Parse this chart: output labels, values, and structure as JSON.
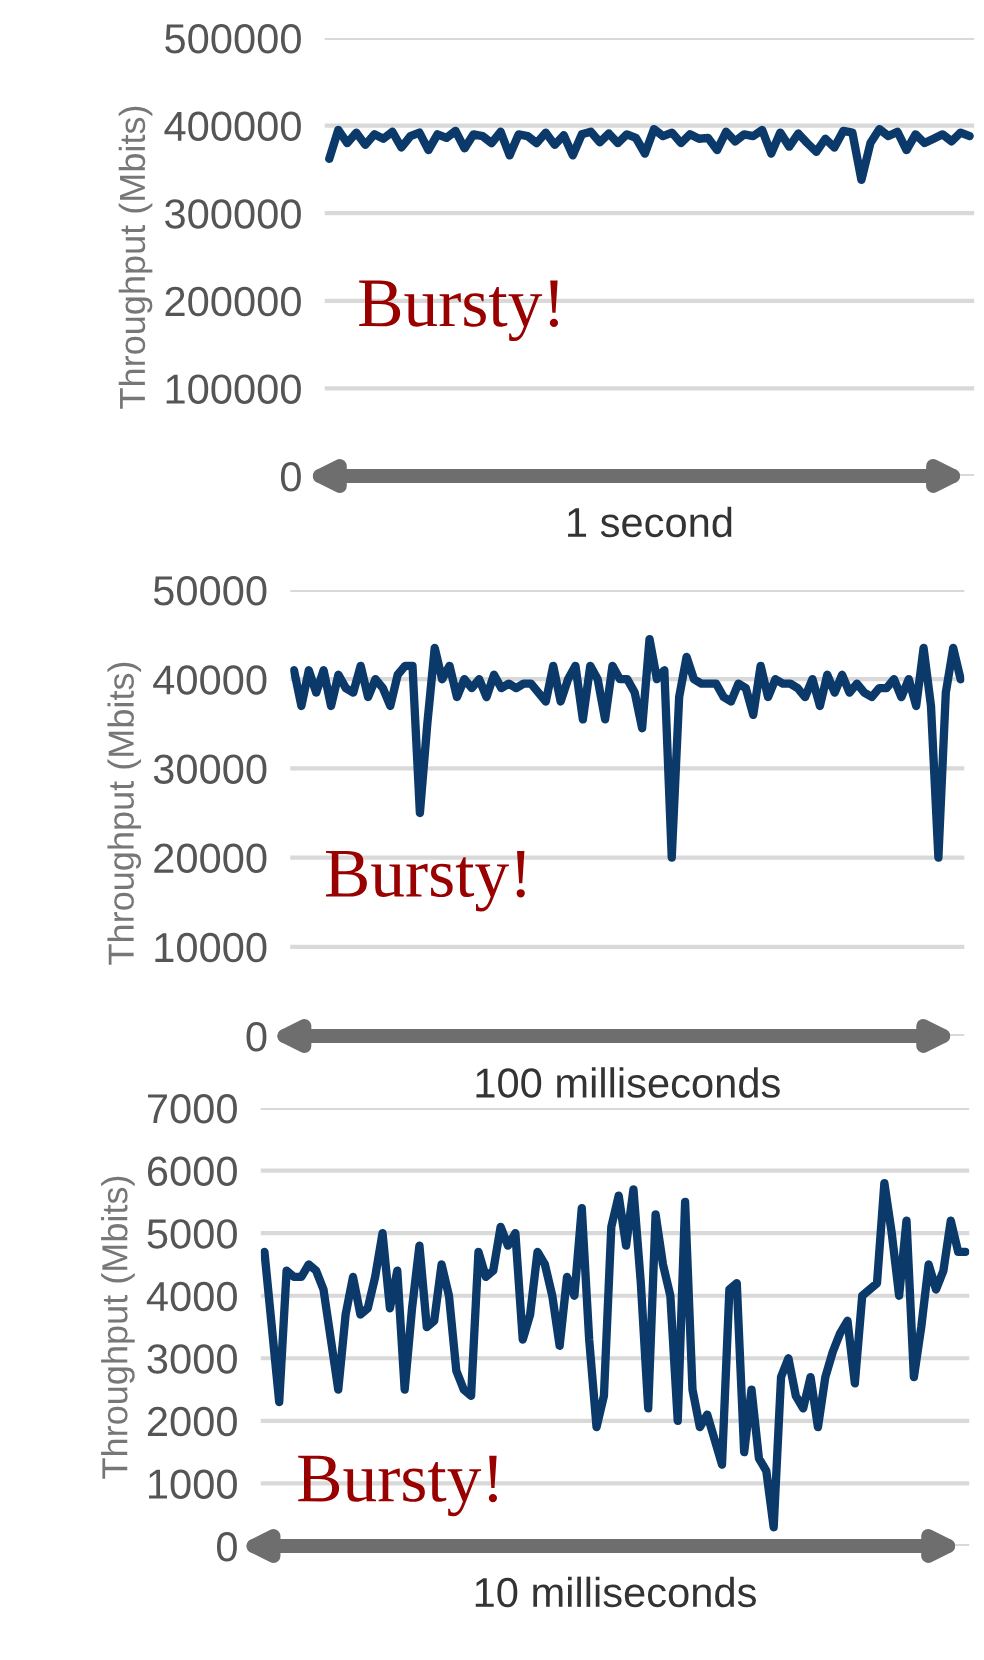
{
  "chart_data": [
    {
      "type": "line",
      "ylabel": "Throughput (Mbits)",
      "xlabel": "1 second",
      "annotations": [
        "Bursty!"
      ],
      "ylim": [
        0,
        500000
      ],
      "yticks": [
        0,
        100000,
        200000,
        300000,
        400000,
        500000
      ],
      "grid": "y",
      "tick_labels": "y",
      "line_style": "solid",
      "categories": [
        null,
        null,
        null,
        null,
        null,
        null,
        null,
        null,
        null,
        null,
        null,
        null,
        null,
        null,
        null,
        null,
        null,
        null,
        null,
        null,
        null,
        null,
        null,
        null,
        null,
        null,
        null,
        null,
        null,
        null,
        null,
        null,
        null,
        null,
        null,
        null,
        null,
        null,
        null,
        null,
        null,
        null,
        null,
        null,
        null,
        null,
        null,
        null,
        null,
        null,
        null,
        null,
        null,
        null,
        null,
        null,
        null,
        null,
        null,
        null,
        null,
        null,
        null,
        null,
        null,
        null,
        null,
        null,
        null,
        null,
        null,
        null
      ],
      "series": [
        {
          "color": "#0b3a6a",
          "values": [
            362000,
            395000,
            380000,
            392000,
            378000,
            390000,
            385000,
            393000,
            375000,
            388000,
            392000,
            372000,
            390000,
            386000,
            394000,
            374000,
            390000,
            388000,
            380000,
            393000,
            366000,
            390000,
            388000,
            380000,
            392000,
            378000,
            389000,
            366000,
            390000,
            393000,
            381000,
            391000,
            380000,
            390000,
            386000,
            368000,
            396000,
            388000,
            392000,
            380000,
            390000,
            385000,
            386000,
            372000,
            393000,
            382000,
            390000,
            388000,
            395000,
            368000,
            392000,
            376000,
            391000,
            380000,
            370000,
            385000,
            375000,
            394000,
            392000,
            338000,
            380000,
            396000,
            388000,
            393000,
            372000,
            390000,
            380000,
            385000,
            390000,
            382000,
            392000,
            388000
          ]
        }
      ]
    },
    {
      "type": "line",
      "ylabel": "Throughput (Mbits)",
      "xlabel": "100 milliseconds",
      "annotations": [
        "Bursty!"
      ],
      "ylim": [
        0,
        50000
      ],
      "yticks": [
        0,
        10000,
        20000,
        30000,
        40000,
        50000
      ],
      "grid": "y",
      "tick_labels": "y",
      "line_style": "solid",
      "categories": [
        null,
        null,
        null,
        null,
        null,
        null,
        null,
        null,
        null,
        null,
        null,
        null,
        null,
        null,
        null,
        null,
        null,
        null,
        null,
        null,
        null,
        null,
        null,
        null,
        null,
        null,
        null,
        null,
        null,
        null,
        null,
        null,
        null,
        null,
        null,
        null,
        null,
        null,
        null,
        null,
        null,
        null,
        null,
        null,
        null,
        null,
        null,
        null,
        null,
        null,
        null,
        null,
        null,
        null,
        null,
        null,
        null,
        null,
        null,
        null,
        null,
        null,
        null,
        null,
        null,
        null,
        null,
        null,
        null,
        null,
        null,
        null,
        null,
        null,
        null,
        null,
        null,
        null,
        null,
        null,
        null,
        null,
        null,
        null,
        null,
        null,
        null,
        null,
        null,
        null,
        null
      ],
      "series": [
        {
          "color": "#0b3a6a",
          "values": [
            41000,
            37000,
            41000,
            38500,
            41000,
            37000,
            40500,
            39000,
            38500,
            41500,
            38000,
            40000,
            39000,
            37000,
            40500,
            41500,
            41500,
            25000,
            35000,
            43500,
            40000,
            41500,
            38000,
            40000,
            39000,
            40000,
            38000,
            40500,
            39000,
            39500,
            39000,
            39500,
            39500,
            38500,
            37500,
            41500,
            37500,
            40000,
            41500,
            35500,
            41500,
            40000,
            35500,
            41500,
            40000,
            40000,
            38500,
            34500,
            44500,
            40000,
            41000,
            20000,
            38000,
            42500,
            40000,
            39500,
            39500,
            39500,
            38000,
            37500,
            39500,
            39000,
            36000,
            41500,
            38000,
            40000,
            39500,
            39500,
            39000,
            38000,
            40000,
            37000,
            40500,
            38500,
            40500,
            38500,
            39500,
            38500,
            38000,
            39000,
            39000,
            40000,
            38000,
            40000,
            37000,
            43500,
            37000,
            20000,
            38500,
            43500,
            40000
          ]
        }
      ]
    },
    {
      "type": "line",
      "ylabel": "Throughput (Mbits)",
      "xlabel": "10 milliseconds",
      "annotations": [
        "Bursty!"
      ],
      "ylim": [
        0,
        7000
      ],
      "yticks": [
        0,
        1000,
        2000,
        3000,
        4000,
        5000,
        6000,
        7000
      ],
      "grid": "y",
      "tick_labels": "y",
      "line_style": "solid",
      "categories": [
        null,
        null,
        null,
        null,
        null,
        null,
        null,
        null,
        null,
        null,
        null,
        null,
        null,
        null,
        null,
        null,
        null,
        null,
        null,
        null,
        null,
        null,
        null,
        null,
        null,
        null,
        null,
        null,
        null,
        null,
        null,
        null,
        null,
        null,
        null,
        null,
        null,
        null,
        null,
        null,
        null,
        null,
        null,
        null,
        null,
        null,
        null,
        null,
        null,
        null,
        null,
        null,
        null,
        null,
        null,
        null,
        null,
        null,
        null,
        null,
        null,
        null,
        null,
        null,
        null,
        null,
        null,
        null,
        null,
        null,
        null,
        null,
        null,
        null,
        null,
        null,
        null,
        null,
        null,
        null,
        null,
        null,
        null,
        null,
        null,
        null,
        null,
        null,
        null,
        null,
        null,
        null,
        null,
        null,
        null,
        null
      ],
      "series": [
        {
          "color": "#0b3a6a",
          "values": [
            4700,
            3500,
            2300,
            4400,
            4300,
            4300,
            4500,
            4400,
            4100,
            3300,
            2500,
            3700,
            4300,
            3700,
            3800,
            4300,
            5000,
            3800,
            4400,
            2500,
            3800,
            4800,
            3500,
            3600,
            4500,
            4000,
            2800,
            2500,
            2400,
            4700,
            4300,
            4400,
            5100,
            4800,
            5000,
            3300,
            3700,
            4700,
            4500,
            4000,
            3200,
            4300,
            4000,
            5400,
            3300,
            1900,
            2400,
            5100,
            5600,
            4800,
            5700,
            4200,
            2200,
            5300,
            4500,
            4000,
            2000,
            5500,
            2500,
            1900,
            2100,
            1700,
            1300,
            4100,
            4200,
            1500,
            2500,
            1400,
            1200,
            300,
            2700,
            3000,
            2400,
            2200,
            2700,
            1900,
            2700,
            3100,
            3400,
            3600,
            2600,
            4000,
            4100,
            4200,
            5800,
            5000,
            4000,
            5200,
            2700,
            3500,
            4500,
            4100,
            4400,
            5200,
            4700,
            4700
          ]
        }
      ]
    }
  ]
}
